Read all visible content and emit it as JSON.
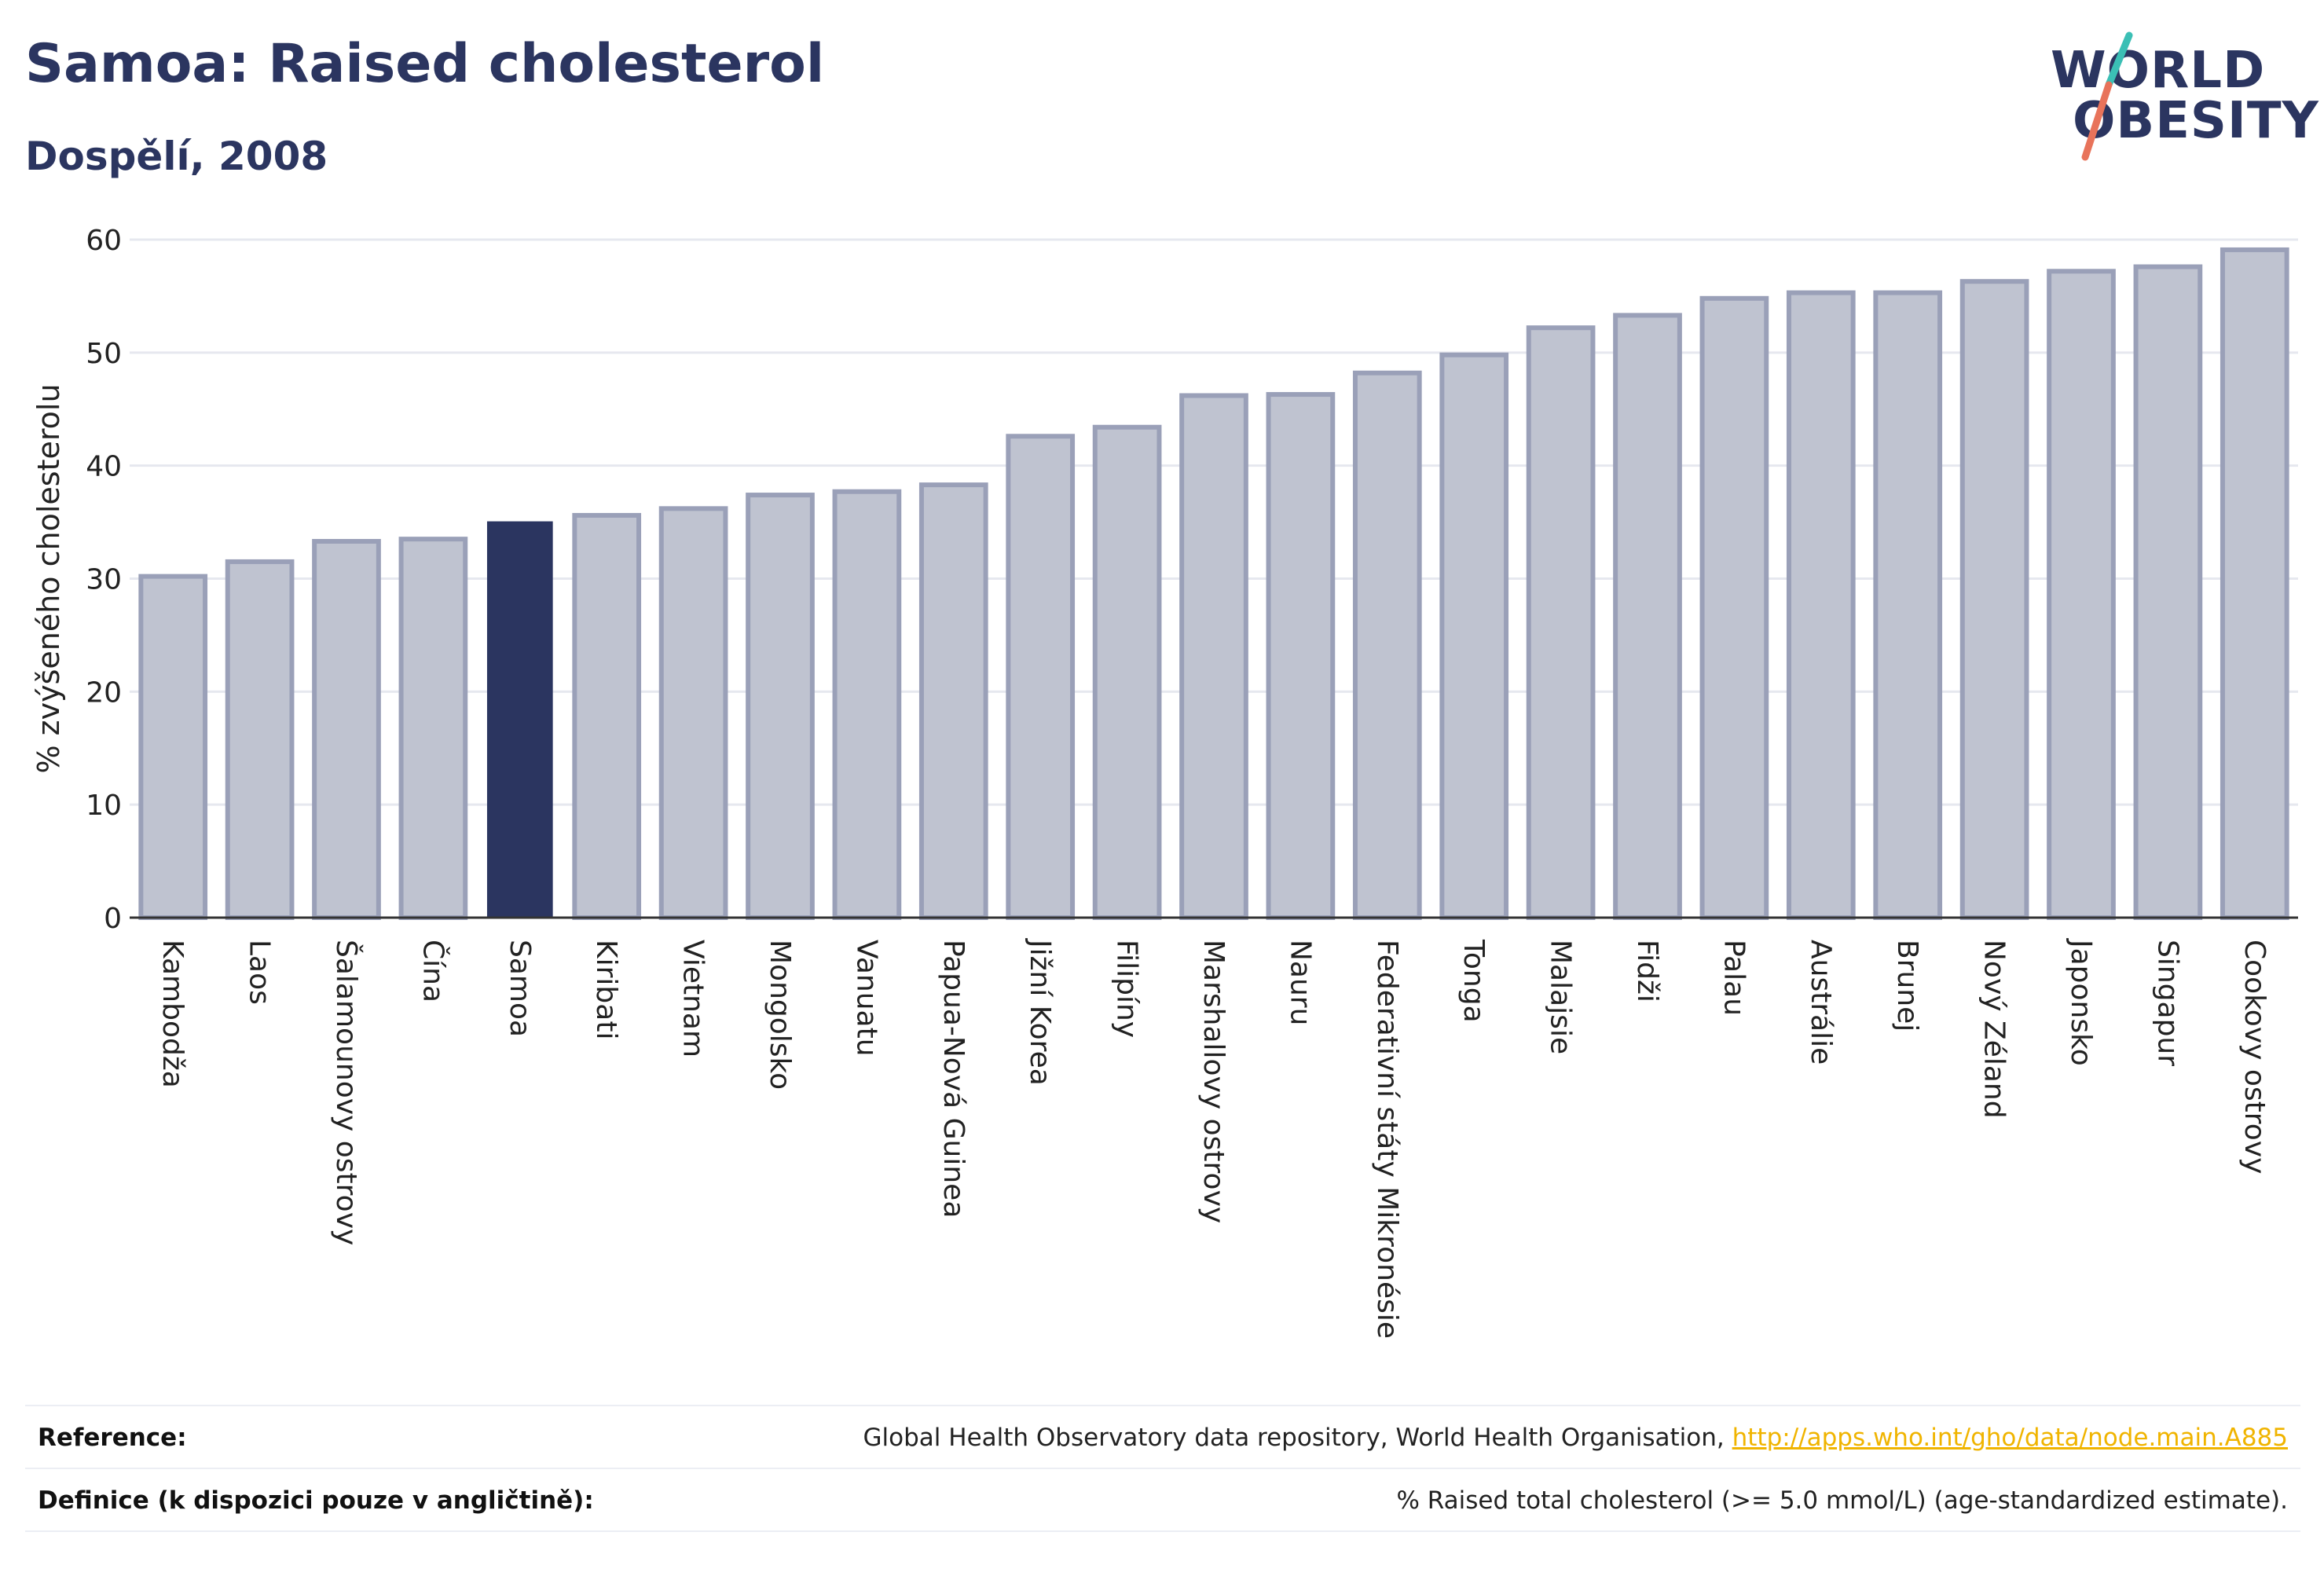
{
  "header": {
    "title": "Samoa: Raised cholesterol",
    "subtitle": "Dospělí, 2008"
  },
  "logo": {
    "line1": "WORLD",
    "line2": "OBESITY",
    "colors": {
      "text": "#2b3560",
      "slash_teal": "#3bbfb5",
      "slash_coral": "#e8735a"
    }
  },
  "chart_data": {
    "type": "bar",
    "ylabel": "% zvýšeného cholesterolu",
    "ylim": [
      0,
      60
    ],
    "yticks": [
      0,
      10,
      20,
      30,
      40,
      50,
      60
    ],
    "grid": true,
    "highlight": "Samoa",
    "colors": {
      "bar": "#bfc3d0",
      "bar_edge": "#9aa0b8",
      "highlight": "#2b3560"
    },
    "categories": [
      "Kambodža",
      "Laos",
      "Šalamounovy ostrovy",
      "Čína",
      "Samoa",
      "Kiribati",
      "Vietnam",
      "Mongolsko",
      "Vanuatu",
      "Papua-Nová Guinea",
      "Jižní Korea",
      "Filipíny",
      "Marshallovy ostrovy",
      "Nauru",
      "Federativní státy Mikronésie",
      "Tonga",
      "Malajsie",
      "Fidži",
      "Palau",
      "Austrálie",
      "Brunej",
      "Nový Zéland",
      "Japonsko",
      "Singapur",
      "Cookovy ostrovy"
    ],
    "values": [
      30.2,
      31.5,
      33.3,
      33.5,
      35.0,
      35.6,
      36.2,
      37.4,
      37.7,
      38.3,
      42.6,
      43.4,
      46.2,
      46.3,
      48.2,
      49.8,
      52.2,
      53.3,
      54.8,
      55.3,
      55.3,
      56.3,
      57.2,
      57.6,
      59.1
    ]
  },
  "footer": {
    "reference_label": "Reference:",
    "reference_text": "Global Health Observatory data repository, World Health Organisation, ",
    "reference_link": "http://apps.who.int/gho/data/node.main.A885",
    "definition_label": "Definice (k dispozici pouze v angličtině):",
    "definition_text": "% Raised total cholesterol (>= 5.0 mmol/L) (age-standardized estimate)."
  }
}
